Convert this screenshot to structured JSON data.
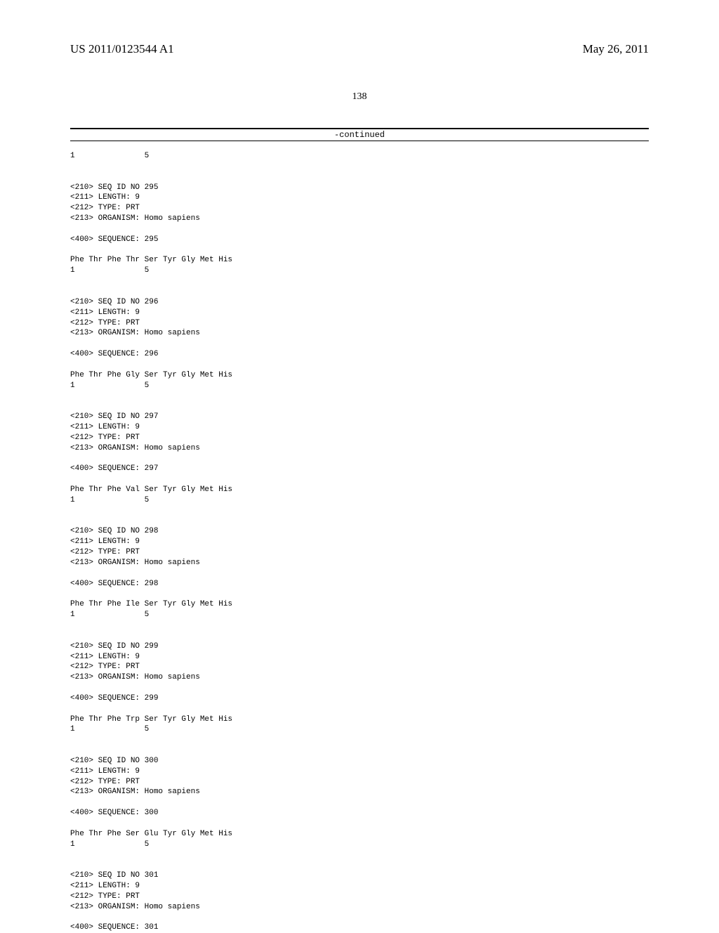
{
  "header": {
    "pub_number": "US 2011/0123544 A1",
    "pub_date": "May 26, 2011"
  },
  "page_number": "138",
  "continued_label": "-continued",
  "sequences": [
    {
      "prefix_residue_line": "1               5",
      "entries": [
        "<210> SEQ ID NO 295",
        "<211> LENGTH: 9",
        "<212> TYPE: PRT",
        "<213> ORGANISM: Homo sapiens"
      ],
      "seq_line": "<400> SEQUENCE: 295",
      "residues": "Phe Thr Phe Thr Ser Tyr Gly Met His",
      "resnum": "1               5"
    },
    {
      "entries": [
        "<210> SEQ ID NO 296",
        "<211> LENGTH: 9",
        "<212> TYPE: PRT",
        "<213> ORGANISM: Homo sapiens"
      ],
      "seq_line": "<400> SEQUENCE: 296",
      "residues": "Phe Thr Phe Gly Ser Tyr Gly Met His",
      "resnum": "1               5"
    },
    {
      "entries": [
        "<210> SEQ ID NO 297",
        "<211> LENGTH: 9",
        "<212> TYPE: PRT",
        "<213> ORGANISM: Homo sapiens"
      ],
      "seq_line": "<400> SEQUENCE: 297",
      "residues": "Phe Thr Phe Val Ser Tyr Gly Met His",
      "resnum": "1               5"
    },
    {
      "entries": [
        "<210> SEQ ID NO 298",
        "<211> LENGTH: 9",
        "<212> TYPE: PRT",
        "<213> ORGANISM: Homo sapiens"
      ],
      "seq_line": "<400> SEQUENCE: 298",
      "residues": "Phe Thr Phe Ile Ser Tyr Gly Met His",
      "resnum": "1               5"
    },
    {
      "entries": [
        "<210> SEQ ID NO 299",
        "<211> LENGTH: 9",
        "<212> TYPE: PRT",
        "<213> ORGANISM: Homo sapiens"
      ],
      "seq_line": "<400> SEQUENCE: 299",
      "residues": "Phe Thr Phe Trp Ser Tyr Gly Met His",
      "resnum": "1               5"
    },
    {
      "entries": [
        "<210> SEQ ID NO 300",
        "<211> LENGTH: 9",
        "<212> TYPE: PRT",
        "<213> ORGANISM: Homo sapiens"
      ],
      "seq_line": "<400> SEQUENCE: 300",
      "residues": "Phe Thr Phe Ser Glu Tyr Gly Met His",
      "resnum": "1               5"
    },
    {
      "entries": [
        "<210> SEQ ID NO 301",
        "<211> LENGTH: 9",
        "<212> TYPE: PRT",
        "<213> ORGANISM: Homo sapiens"
      ],
      "seq_line": "<400> SEQUENCE: 301"
    }
  ]
}
